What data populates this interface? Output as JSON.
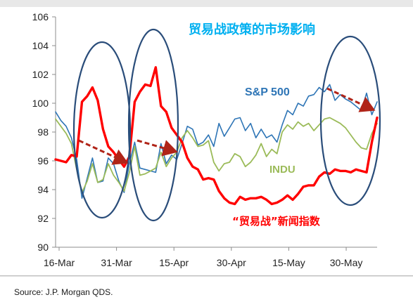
{
  "chart_data": {
    "type": "line",
    "title": "贸易战政策的市场影响",
    "source": "Source: J.P. Morgan QDS.",
    "x_tick_labels": [
      "16-Mar",
      "31-Mar",
      "15-Apr",
      "30-Apr",
      "15-May",
      "30-May"
    ],
    "ylim": [
      90,
      106
    ],
    "y_ticks": [
      90,
      92,
      94,
      96,
      98,
      100,
      102,
      104,
      106
    ],
    "grid": false,
    "legend": "inline labels",
    "series": [
      {
        "name": "S&P 500",
        "color": "#2e75b6",
        "values": [
          99.4,
          98.8,
          98.4,
          97.6,
          96.1,
          93.4,
          94.8,
          96.2,
          94.5,
          94.6,
          96.2,
          95.8,
          94.6,
          93.8,
          95.8,
          97.3,
          95.5,
          95.4,
          95.3,
          95.2,
          97.2,
          95.8,
          96.4,
          96.1,
          97.2,
          98.4,
          98.2,
          97.1,
          97.3,
          97.8,
          97.0,
          98.6,
          97.7,
          98.3,
          98.9,
          99.0,
          98.1,
          98.6,
          97.6,
          98.2,
          97.6,
          97.8,
          97.3,
          98.5,
          99.5,
          99.2,
          100.0,
          99.8,
          100.5,
          100.6,
          101.1,
          100.8,
          101.3,
          100.2,
          100.6,
          100.3,
          100.1,
          99.8,
          99.5,
          100.7,
          99.2,
          100.1
        ]
      },
      {
        "name": "INDU",
        "color": "#9bbb59",
        "values": [
          98.9,
          98.4,
          97.9,
          97.2,
          95.4,
          93.8,
          94.6,
          95.8,
          94.5,
          94.7,
          95.8,
          95.0,
          94.5,
          93.9,
          95.2,
          97.0,
          95.0,
          95.1,
          95.3,
          95.5,
          96.6,
          95.6,
          96.2,
          96.6,
          97.6,
          98.1,
          97.6,
          97.0,
          97.1,
          97.4,
          95.9,
          95.3,
          95.8,
          95.9,
          96.5,
          96.3,
          95.6,
          95.9,
          96.4,
          97.2,
          96.3,
          96.8,
          96.5,
          98.0,
          98.5,
          98.2,
          98.7,
          98.4,
          98.6,
          98.1,
          98.5,
          98.9,
          99.0,
          98.8,
          98.6,
          98.3,
          97.8,
          97.3,
          96.9,
          96.8,
          97.9,
          98.6
        ]
      },
      {
        "name": "“贸易战”新闻指数",
        "color": "#ff0000",
        "values": [
          96.1,
          96.0,
          95.9,
          96.4,
          96.3,
          100.1,
          100.5,
          101.1,
          100.2,
          98.2,
          97.0,
          96.6,
          96.1,
          95.6,
          96.3,
          100.1,
          100.8,
          101.3,
          101.2,
          102.5,
          99.8,
          99.4,
          98.3,
          97.8,
          97.3,
          96.2,
          95.6,
          95.4,
          94.7,
          94.8,
          94.7,
          93.9,
          93.4,
          93.1,
          93.0,
          93.5,
          93.3,
          93.4,
          93.4,
          93.5,
          93.3,
          93.0,
          93.1,
          93.3,
          93.6,
          93.3,
          93.7,
          94.2,
          94.3,
          94.3,
          94.9,
          95.2,
          95.1,
          95.4,
          95.3,
          95.3,
          95.2,
          95.4,
          95.3,
          95.2,
          97.3,
          99.0
        ]
      }
    ],
    "series_labels": [
      "S&P 500",
      "INDU",
      "“贸易战”新闻指数"
    ]
  }
}
